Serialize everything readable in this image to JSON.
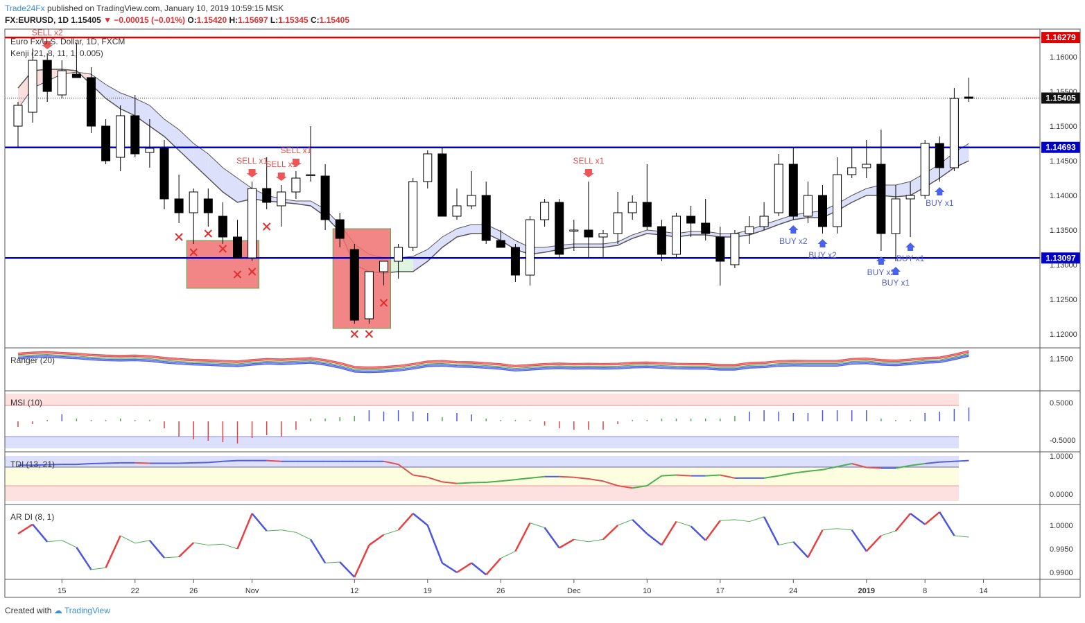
{
  "header": {
    "author": "Trade24Fx",
    "published": "published on TradingView.com, January 10, 2019 10:59:15 MSK"
  },
  "quote": {
    "symbol": "FX:EURUSD, 1D",
    "last": "1.15405",
    "change": "▼ −0.00015 (−0.01%)",
    "o_label": "O:",
    "o": "1.15420",
    "h_label": "H:",
    "h": "1.15697",
    "l_label": "L:",
    "l": "1.15345",
    "c_label": "C:",
    "c": "1.15405"
  },
  "footer": {
    "created": "Created with",
    "brand": "TradingView"
  },
  "chart_data": [
    {
      "type": "candlestick",
      "title": "Euro Fx/U.S. Dollar, 1D, FXCM",
      "indicator": "Kenji (21, 8, 11, 1, 0.005)",
      "ylim": [
        1.118,
        1.164
      ],
      "price_ticks": [
        "1.16000",
        "1.15500",
        "1.15000",
        "1.14500",
        "1.14000",
        "1.13500",
        "1.13000",
        "1.12500",
        "1.12000"
      ],
      "horizontal_lines": [
        {
          "value": 1.16279,
          "label": "1.16279",
          "color": "#e00000"
        },
        {
          "value": 1.14693,
          "label": "1.14693",
          "color": "#0000c8"
        },
        {
          "value": 1.13097,
          "label": "1.13097",
          "color": "#0000c8"
        }
      ],
      "last_price": {
        "value": 1.15405,
        "label": "1.15405"
      },
      "x_ticks": [
        {
          "label": "15",
          "i": 3
        },
        {
          "label": "22",
          "i": 8
        },
        {
          "label": "26",
          "i": 12
        },
        {
          "label": "Nov",
          "i": 16
        },
        {
          "label": "12",
          "i": 23
        },
        {
          "label": "19",
          "i": 28
        },
        {
          "label": "26",
          "i": 33
        },
        {
          "label": "Dec",
          "i": 38
        },
        {
          "label": "10",
          "i": 43
        },
        {
          "label": "17",
          "i": 48
        },
        {
          "label": "24",
          "i": 53
        },
        {
          "label": "2019",
          "i": 58
        },
        {
          "label": "8",
          "i": 62
        },
        {
          "label": "14",
          "i": 66
        }
      ],
      "candles": [
        [
          1.15,
          1.1535,
          1.147,
          1.153
        ],
        [
          1.152,
          1.1612,
          1.1505,
          1.1595
        ],
        [
          1.1595,
          1.1605,
          1.1535,
          1.155
        ],
        [
          1.1545,
          1.1595,
          1.154,
          1.158
        ],
        [
          1.1575,
          1.162,
          1.157,
          1.157
        ],
        [
          1.157,
          1.1585,
          1.149,
          1.15
        ],
        [
          1.15,
          1.151,
          1.1445,
          1.145
        ],
        [
          1.1455,
          1.153,
          1.1435,
          1.1515
        ],
        [
          1.1515,
          1.1545,
          1.1455,
          1.146
        ],
        [
          1.1462,
          1.151,
          1.144,
          1.1468
        ],
        [
          1.1468,
          1.148,
          1.138,
          1.1395
        ],
        [
          1.1395,
          1.143,
          1.136,
          1.1375
        ],
        [
          1.1375,
          1.141,
          1.133,
          1.1405
        ],
        [
          1.1395,
          1.141,
          1.1355,
          1.1375
        ],
        [
          1.137,
          1.139,
          1.133,
          1.134
        ],
        [
          1.134,
          1.1365,
          1.131,
          1.131
        ],
        [
          1.131,
          1.142,
          1.1305,
          1.141
        ],
        [
          1.141,
          1.1455,
          1.138,
          1.139
        ],
        [
          1.1385,
          1.1415,
          1.1355,
          1.1405
        ],
        [
          1.1405,
          1.1435,
          1.1395,
          1.1425
        ],
        [
          1.143,
          1.15,
          1.142,
          1.143
        ],
        [
          1.1428,
          1.1445,
          1.135,
          1.1365
        ],
        [
          1.1365,
          1.1375,
          1.1325,
          1.1338
        ],
        [
          1.1322,
          1.133,
          1.1215,
          1.122
        ],
        [
          1.1222,
          1.129,
          1.1215,
          1.129
        ],
        [
          1.129,
          1.1305,
          1.127,
          1.1305
        ],
        [
          1.1305,
          1.133,
          1.128,
          1.1325
        ],
        [
          1.1325,
          1.1425,
          1.132,
          1.142
        ],
        [
          1.142,
          1.1465,
          1.141,
          1.146
        ],
        [
          1.146,
          1.147,
          1.137,
          1.137
        ],
        [
          1.137,
          1.141,
          1.1365,
          1.1385
        ],
        [
          1.1385,
          1.1435,
          1.138,
          1.14
        ],
        [
          1.14,
          1.142,
          1.133,
          1.1335
        ],
        [
          1.1335,
          1.135,
          1.1325,
          1.1325
        ],
        [
          1.1325,
          1.133,
          1.1275,
          1.1285
        ],
        [
          1.1285,
          1.137,
          1.127,
          1.1365
        ],
        [
          1.1365,
          1.1395,
          1.1355,
          1.139
        ],
        [
          1.139,
          1.1395,
          1.131,
          1.1315
        ],
        [
          1.135,
          1.1365,
          1.132,
          1.135
        ],
        [
          1.135,
          1.142,
          1.131,
          1.134
        ],
        [
          1.134,
          1.135,
          1.131,
          1.1345
        ],
        [
          1.1345,
          1.1405,
          1.133,
          1.1375
        ],
        [
          1.1375,
          1.14,
          1.1365,
          1.139
        ],
        [
          1.139,
          1.1445,
          1.135,
          1.1355
        ],
        [
          1.1355,
          1.1365,
          1.1305,
          1.1315
        ],
        [
          1.1315,
          1.1375,
          1.131,
          1.137
        ],
        [
          1.137,
          1.1385,
          1.134,
          1.136
        ],
        [
          1.136,
          1.1395,
          1.1335,
          1.1345
        ],
        [
          1.134,
          1.1355,
          1.127,
          1.1305
        ],
        [
          1.13,
          1.135,
          1.1295,
          1.1345
        ],
        [
          1.1345,
          1.137,
          1.133,
          1.1355
        ],
        [
          1.1355,
          1.139,
          1.135,
          1.137
        ],
        [
          1.1375,
          1.146,
          1.137,
          1.1445
        ],
        [
          1.1445,
          1.147,
          1.1365,
          1.137
        ],
        [
          1.137,
          1.142,
          1.136,
          1.14
        ],
        [
          1.14,
          1.1415,
          1.1345,
          1.1355
        ],
        [
          1.1355,
          1.1455,
          1.1345,
          1.143
        ],
        [
          1.143,
          1.147,
          1.1425,
          1.144
        ],
        [
          1.144,
          1.148,
          1.1425,
          1.1445
        ],
        [
          1.1445,
          1.1495,
          1.132,
          1.1345
        ],
        [
          1.1345,
          1.1415,
          1.1305,
          1.1395
        ],
        [
          1.1395,
          1.142,
          1.134,
          1.14
        ],
        [
          1.14,
          1.148,
          1.1395,
          1.1475
        ],
        [
          1.1475,
          1.1485,
          1.142,
          1.144
        ],
        [
          1.144,
          1.1555,
          1.1435,
          1.154
        ],
        [
          1.1542,
          1.157,
          1.1535,
          1.154
        ]
      ],
      "kenji_upper": [
        1.1555,
        1.158,
        1.1582,
        1.1582,
        1.158,
        1.156,
        1.154,
        1.1525,
        1.1515,
        1.15,
        1.1485,
        1.1465,
        1.1445,
        1.1425,
        1.1405,
        1.139,
        1.1395,
        1.1392,
        1.139,
        1.1388,
        1.1385,
        1.137,
        1.1348,
        1.13,
        1.129,
        1.1288,
        1.129,
        1.129,
        1.1305,
        1.1325,
        1.134,
        1.1345,
        1.1345,
        1.1335,
        1.1322,
        1.1315,
        1.1318,
        1.1322,
        1.1325,
        1.1325,
        1.1325,
        1.1328,
        1.1338,
        1.1345,
        1.1343,
        1.134,
        1.1343,
        1.1343,
        1.134,
        1.134,
        1.1343,
        1.135,
        1.1358,
        1.1365,
        1.1368,
        1.1368,
        1.1378,
        1.139,
        1.14,
        1.14,
        1.1398,
        1.14,
        1.1412,
        1.1425,
        1.144,
        1.145
      ],
      "kenji_lower": [
        1.1525,
        1.1555,
        1.1565,
        1.1575,
        1.1578,
        1.1575,
        1.156,
        1.1548,
        1.154,
        1.153,
        1.151,
        1.1495,
        1.1475,
        1.146,
        1.144,
        1.1425,
        1.141,
        1.14,
        1.1395,
        1.1392,
        1.1392,
        1.138,
        1.1358,
        1.133,
        1.1315,
        1.131,
        1.131,
        1.1312,
        1.1322,
        1.134,
        1.1352,
        1.1358,
        1.1358,
        1.1348,
        1.1335,
        1.1325,
        1.1325,
        1.1328,
        1.133,
        1.133,
        1.133,
        1.1333,
        1.1343,
        1.135,
        1.1348,
        1.1345,
        1.1348,
        1.1348,
        1.1345,
        1.1345,
        1.135,
        1.1358,
        1.1365,
        1.1372,
        1.1375,
        1.1378,
        1.1388,
        1.14,
        1.141,
        1.1415,
        1.1415,
        1.142,
        1.1432,
        1.1445,
        1.1462,
        1.1475
      ],
      "signals": [
        {
          "i": 2,
          "label": "SELL x2",
          "type": "sell"
        },
        {
          "i": 16,
          "label": "SELL x1",
          "type": "sell"
        },
        {
          "i": 18,
          "label": "SELL x1",
          "type": "sell"
        },
        {
          "i": 19,
          "label": "SELL x1",
          "type": "sell"
        },
        {
          "i": 39,
          "label": "SELL x1",
          "type": "sell"
        },
        {
          "i": 53,
          "label": "BUY x2",
          "type": "buy"
        },
        {
          "i": 55,
          "label": "BUY x2",
          "type": "buy"
        },
        {
          "i": 59,
          "label": "BUY x2",
          "type": "buy"
        },
        {
          "i": 60,
          "label": "BUY x1",
          "type": "buy"
        },
        {
          "i": 61,
          "label": "BUY x1",
          "type": "buy"
        },
        {
          "i": 63,
          "label": "BUY x1",
          "type": "buy"
        }
      ]
    },
    {
      "type": "line",
      "title": "Ranger (20)",
      "ylim": [
        1.118,
        1.16
      ],
      "y_ticks": [
        "1.1500"
      ],
      "red_top": [
        1.1555,
        1.1565,
        1.157,
        1.1562,
        1.1555,
        1.1542,
        1.1535,
        1.1532,
        1.1535,
        1.1528,
        1.1512,
        1.15,
        1.1492,
        1.1488,
        1.148,
        1.1475,
        1.149,
        1.15,
        1.1495,
        1.1502,
        1.151,
        1.149,
        1.146,
        1.142,
        1.1415,
        1.142,
        1.143,
        1.145,
        1.1475,
        1.148,
        1.147,
        1.1468,
        1.1458,
        1.1448,
        1.143,
        1.144,
        1.145,
        1.1455,
        1.145,
        1.1452,
        1.145,
        1.1452,
        1.1462,
        1.1465,
        1.1458,
        1.1452,
        1.145,
        1.145,
        1.144,
        1.144,
        1.146,
        1.1465,
        1.1478,
        1.1482,
        1.148,
        1.148,
        1.148,
        1.15,
        1.1505,
        1.149,
        1.1485,
        1.1495,
        1.151,
        1.1515,
        1.1545,
        1.158
      ]
    },
    {
      "type": "bar",
      "title": "MSI (10)",
      "y_ticks": [
        "0.5000",
        "-0.5000"
      ],
      "values": [
        -0.2,
        -0.1,
        0,
        0.25,
        0.1,
        0,
        0,
        0.1,
        0,
        0,
        -0.25,
        -0.55,
        -0.65,
        -0.7,
        -0.75,
        -0.8,
        -0.6,
        -0.5,
        -0.55,
        -0.3,
        0.1,
        0.1,
        0.15,
        0.2,
        0.4,
        0.35,
        0.4,
        0.35,
        0.3,
        0.15,
        0.3,
        0.25,
        0.1,
        0,
        0,
        0,
        -0.15,
        -0.25,
        -0.3,
        -0.3,
        -0.3,
        -0.1,
        0,
        0,
        0.1,
        0.1,
        0.1,
        0.1,
        0.1,
        0.2,
        0.35,
        0.4,
        0.35,
        0.3,
        0.3,
        0.4,
        0.4,
        0.4,
        0.4,
        0.1,
        0.05,
        0,
        0.3,
        0.35,
        0.45,
        0.5
      ]
    },
    {
      "type": "line",
      "title": "TDI (13, 21)",
      "y_ticks": [
        "1.0000",
        "0.0000"
      ],
      "values": [
        0.76,
        0.76,
        0.77,
        0.78,
        0.78,
        0.8,
        0.81,
        0.82,
        0.82,
        0.81,
        0.81,
        0.81,
        0.82,
        0.83,
        0.86,
        0.88,
        0.88,
        0.88,
        0.86,
        0.86,
        0.86,
        0.86,
        0.86,
        0.86,
        0.86,
        0.86,
        0.78,
        0.5,
        0.44,
        0.32,
        0.28,
        0.3,
        0.31,
        0.34,
        0.38,
        0.42,
        0.46,
        0.46,
        0.44,
        0.4,
        0.34,
        0.22,
        0.16,
        0.22,
        0.48,
        0.5,
        0.48,
        0.48,
        0.5,
        0.42,
        0.42,
        0.42,
        0.48,
        0.55,
        0.6,
        0.64,
        0.72,
        0.8,
        0.7,
        0.68,
        0.68,
        0.75,
        0.8,
        0.84,
        0.86,
        0.88
      ]
    },
    {
      "type": "line",
      "title": "AR DI (8, 1)",
      "y_ticks": [
        "1.0000",
        "0.9950",
        "0.9900"
      ],
      "values": [
        0.9982,
        1.0002,
        0.9965,
        0.9968,
        0.9953,
        0.9906,
        0.991,
        0.9978,
        0.9962,
        0.9968,
        0.9931,
        0.9933,
        0.9963,
        0.9958,
        0.996,
        0.995,
        1.0025,
        0.9988,
        0.999,
        0.9985,
        0.997,
        0.992,
        0.9922,
        0.989,
        0.9958,
        0.998,
        0.999,
        1.0025,
        1.0,
        0.992,
        0.99,
        0.992,
        0.9895,
        0.993,
        0.9945,
        1.0005,
        0.9995,
        0.9952,
        0.997,
        0.9965,
        0.997,
        1.0,
        1.0012,
        0.9982,
        0.9958,
        1.0008,
        0.9998,
        0.9968,
        1.001,
        1.0012,
        1.0008,
        1.0018,
        0.9958,
        0.9965,
        0.9932,
        0.999,
        0.9993,
        0.999,
        0.9945,
        0.9978,
        0.9988,
        1.0025,
        1.0002,
        1.0028,
        0.9978,
        0.9975
      ]
    }
  ]
}
